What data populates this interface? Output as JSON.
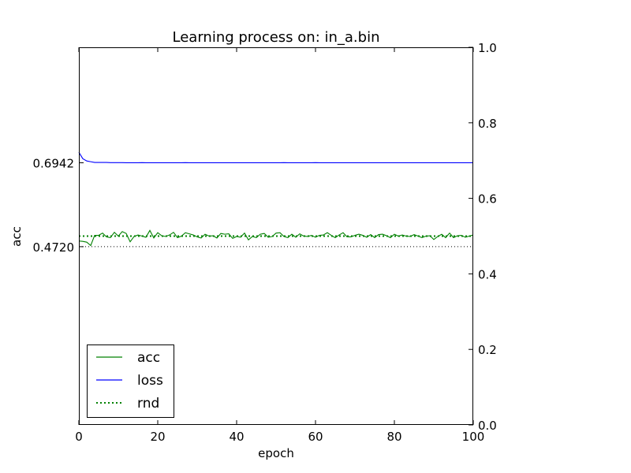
{
  "chart_data": {
    "type": "line",
    "title": "Learning process on: in_a.bin",
    "xlabel": "epoch",
    "ylabel": "acc",
    "xlim": [
      0,
      100
    ],
    "ylim": [
      0,
      1
    ],
    "x_ticks": [
      0,
      20,
      40,
      60,
      80,
      100
    ],
    "y_right_ticks": [
      0.0,
      0.2,
      0.4,
      0.6,
      0.8,
      1.0
    ],
    "y_left_ticks": [
      0.6942,
      0.472
    ],
    "reference_line": {
      "value": 0.472,
      "style": "dotted",
      "color": "#000000"
    },
    "series": [
      {
        "name": "acc",
        "color": "#008000",
        "style": "solid",
        "values": [
          0.487,
          0.486,
          0.484,
          0.475,
          0.502,
          0.502,
          0.508,
          0.498,
          0.496,
          0.51,
          0.5,
          0.512,
          0.507,
          0.485,
          0.499,
          0.503,
          0.5,
          0.497,
          0.515,
          0.495,
          0.509,
          0.501,
          0.499,
          0.503,
          0.51,
          0.496,
          0.5,
          0.509,
          0.506,
          0.503,
          0.498,
          0.495,
          0.505,
          0.5,
          0.501,
          0.495,
          0.507,
          0.505,
          0.506,
          0.494,
          0.499,
          0.497,
          0.508,
          0.49,
          0.499,
          0.496,
          0.505,
          0.507,
          0.497,
          0.499,
          0.508,
          0.509,
          0.499,
          0.496,
          0.505,
          0.497,
          0.506,
          0.5,
          0.499,
          0.502,
          0.497,
          0.502,
          0.503,
          0.509,
          0.502,
          0.496,
          0.503,
          0.509,
          0.498,
          0.498,
          0.502,
          0.505,
          0.502,
          0.497,
          0.504,
          0.496,
          0.504,
          0.505,
          0.501,
          0.496,
          0.505,
          0.5,
          0.503,
          0.5,
          0.499,
          0.504,
          0.5,
          0.496,
          0.5,
          0.501,
          0.491,
          0.499,
          0.505,
          0.496,
          0.508,
          0.496,
          0.501,
          0.502,
          0.497,
          0.5,
          0.503
        ]
      },
      {
        "name": "loss",
        "color": "#0000ff",
        "style": "solid",
        "values": [
          0.722,
          0.705,
          0.699,
          0.697,
          0.695,
          0.695,
          0.695,
          0.695,
          0.6945,
          0.6945,
          0.6945,
          0.6945,
          0.6942,
          0.6942,
          0.6942,
          0.6942,
          0.6945,
          0.6942,
          0.6942,
          0.6942,
          0.6942,
          0.6942,
          0.6942,
          0.6942,
          0.6942,
          0.6942,
          0.6942,
          0.6945,
          0.6942,
          0.6942,
          0.6942,
          0.6942,
          0.6942,
          0.6942,
          0.6942,
          0.6942,
          0.6942,
          0.6942,
          0.6942,
          0.6942,
          0.6942,
          0.6942,
          0.6942,
          0.6942,
          0.6942,
          0.6942,
          0.6942,
          0.6942,
          0.6942,
          0.6942,
          0.6942,
          0.6942,
          0.6945,
          0.6942,
          0.6942,
          0.6942,
          0.6942,
          0.6942,
          0.6942,
          0.6942,
          0.6945,
          0.6942,
          0.6942,
          0.6942,
          0.6942,
          0.6942,
          0.6942,
          0.6942,
          0.6942,
          0.6942,
          0.6942,
          0.6942,
          0.6942,
          0.6942,
          0.6942,
          0.6942,
          0.6942,
          0.6942,
          0.6942,
          0.6942,
          0.6942,
          0.6942,
          0.6942,
          0.6942,
          0.6942,
          0.6942,
          0.6942,
          0.6942,
          0.6942,
          0.6942,
          0.6942,
          0.6942,
          0.6942,
          0.6942,
          0.6942,
          0.6942,
          0.6942,
          0.6942,
          0.6942,
          0.6942,
          0.6942
        ]
      },
      {
        "name": "rnd",
        "color": "#008000",
        "style": "dotted",
        "constant": 0.5
      }
    ],
    "legend": {
      "position": "lower-left",
      "entries": [
        "acc",
        "loss",
        "rnd"
      ]
    }
  }
}
